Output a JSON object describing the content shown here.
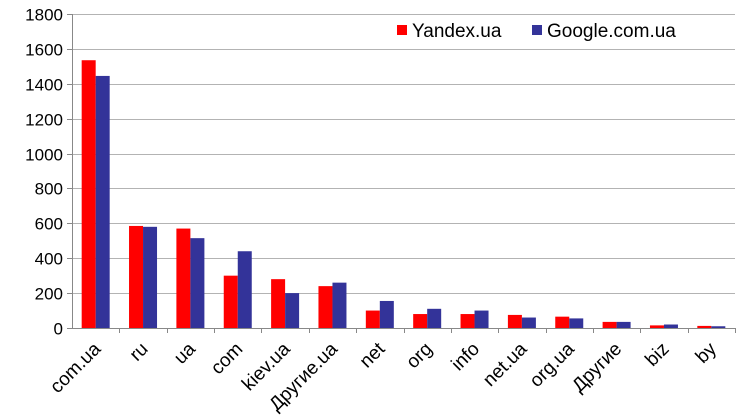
{
  "chart_data": {
    "type": "bar",
    "title": "",
    "xlabel": "",
    "ylabel": "",
    "ylim": [
      0,
      1800
    ],
    "yticks": [
      0,
      200,
      400,
      600,
      800,
      1000,
      1200,
      1400,
      1600,
      1800
    ],
    "grid": true,
    "legend_position": "top-right",
    "categories": [
      "com.ua",
      "ru",
      "ua",
      "com",
      "kiev.ua",
      "Другие.ua",
      "net",
      "org",
      "info",
      "net.ua",
      "org.ua",
      "Другие",
      "biz",
      "by"
    ],
    "series": [
      {
        "name": "Yandex.ua",
        "color": "#ff0000",
        "values": [
          1535,
          585,
          570,
          300,
          280,
          240,
          100,
          80,
          80,
          75,
          65,
          35,
          15,
          12
        ]
      },
      {
        "name": "Google.com.ua",
        "color": "#333399",
        "values": [
          1445,
          580,
          515,
          440,
          200,
          260,
          155,
          110,
          100,
          60,
          55,
          35,
          20,
          10
        ]
      }
    ]
  }
}
